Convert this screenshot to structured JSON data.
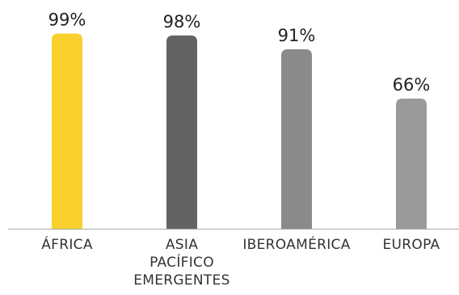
{
  "chart_data": {
    "type": "bar",
    "title": "",
    "xlabel": "",
    "ylabel": "",
    "ylim": [
      0,
      100
    ],
    "grid": false,
    "legend": "none",
    "categories": [
      "ÁFRICA",
      "ASIA PACÍFICO EMERGENTES",
      "IBEROAMÉRICA",
      "EUROPA"
    ],
    "category_lines": [
      [
        "ÁFRICA"
      ],
      [
        "ASIA",
        "PACÍFICO",
        "EMERGENTES"
      ],
      [
        "IBEROAMÉRICA"
      ],
      [
        "EUROPA"
      ]
    ],
    "values": [
      99,
      98,
      91,
      66
    ],
    "value_labels": [
      "99%",
      "98%",
      "91%",
      "66%"
    ],
    "colors": [
      "#f9d02c",
      "#616463",
      "#8a8a8a",
      "#9a9a9a"
    ],
    "axis_color": "#aaaaaa"
  }
}
